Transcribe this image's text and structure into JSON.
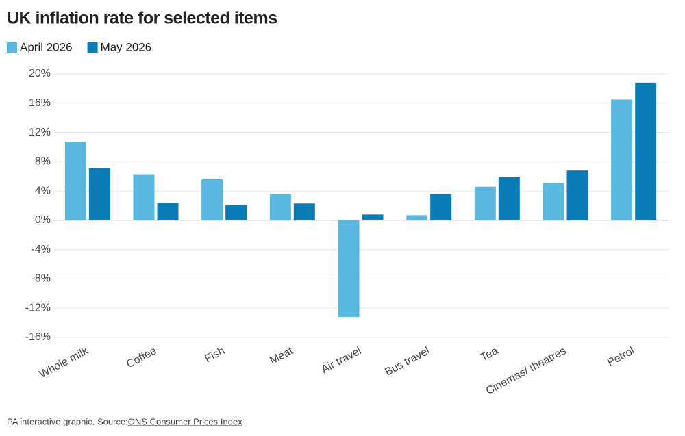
{
  "chart_data": {
    "type": "bar",
    "title": "UK inflation rate for selected items",
    "categories": [
      "Whole milk",
      "Coffee",
      "Fish",
      "Meat",
      "Air travel",
      "Bus travel",
      "Tea",
      "Cinemas/ theatres",
      "Petrol"
    ],
    "series": [
      {
        "name": "April 2026",
        "color": "#5ab7df",
        "values": [
          10.7,
          6.3,
          5.6,
          3.6,
          -13.2,
          0.7,
          4.6,
          5.1,
          16.5
        ]
      },
      {
        "name": "May 2026",
        "color": "#0b7bb5",
        "values": [
          7.1,
          2.4,
          2.1,
          2.3,
          0.8,
          3.6,
          5.9,
          6.8,
          18.8
        ]
      }
    ],
    "ylim": [
      -16,
      20
    ],
    "yticks": [
      {
        "value": 20,
        "label": "20%"
      },
      {
        "value": 16,
        "label": "16%"
      },
      {
        "value": 12,
        "label": "12%"
      },
      {
        "value": 8,
        "label": "8%"
      },
      {
        "value": 4,
        "label": "4%"
      },
      {
        "value": 0,
        "label": "0%"
      },
      {
        "value": -4,
        "label": "-4%"
      },
      {
        "value": -8,
        "label": "-8%"
      },
      {
        "value": -12,
        "label": "-12%"
      },
      {
        "value": -16,
        "label": "-16%"
      }
    ],
    "grid": true,
    "legend": "top-left",
    "footer": {
      "text": "PA interactive graphic. Source: ",
      "link": "ONS Consumer Prices Index"
    }
  }
}
